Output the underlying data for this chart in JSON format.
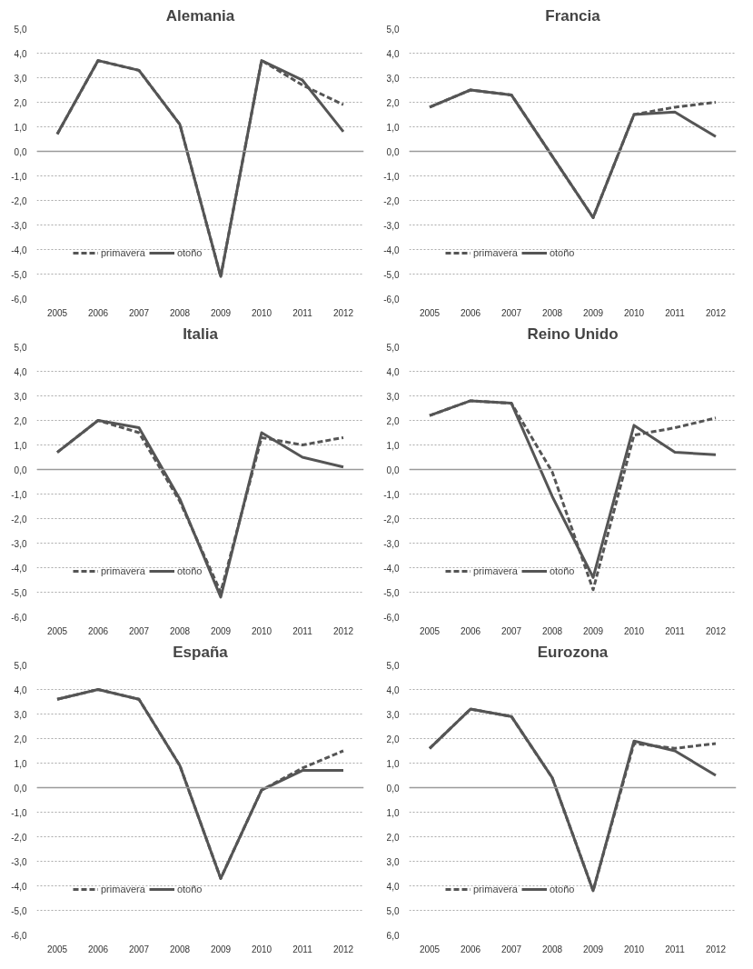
{
  "chart_data": [
    {
      "type": "line",
      "title": "Alemania",
      "categories": [
        "2005",
        "2006",
        "2007",
        "2008",
        "2009",
        "2010",
        "2011",
        "2012"
      ],
      "series": [
        {
          "name": "primavera",
          "color": "#555555",
          "line_style": "dashed",
          "values": [
            0.7,
            3.7,
            3.3,
            1.1,
            -5.1,
            3.7,
            2.7,
            1.9
          ]
        },
        {
          "name": "otoño",
          "color": "#555555",
          "line_style": "solid",
          "values": [
            0.7,
            3.7,
            3.3,
            1.1,
            -5.1,
            3.7,
            2.9,
            0.8
          ]
        }
      ],
      "ylim": [
        -6,
        5
      ],
      "yticks": [
        {
          "value": -6,
          "label": "-6,0"
        },
        {
          "value": -5,
          "label": "-5,0"
        },
        {
          "value": -4,
          "label": "-4,0"
        },
        {
          "value": -3,
          "label": "-3,0"
        },
        {
          "value": -2,
          "label": "-2,0"
        },
        {
          "value": -1,
          "label": "-1,0"
        },
        {
          "value": 0,
          "label": "0,0"
        },
        {
          "value": 1,
          "label": "1,0"
        },
        {
          "value": 2,
          "label": "2,0"
        },
        {
          "value": 3,
          "label": "3,0"
        },
        {
          "value": 4,
          "label": "4,0"
        },
        {
          "value": 5,
          "label": "5,0"
        }
      ],
      "ref_lines": [
        {
          "axis": "y",
          "value": 0,
          "color": "#9a9a9a"
        }
      ],
      "grid": "y",
      "legend": "bottom left",
      "marker": "none"
    },
    {
      "type": "line",
      "title": "Francia",
      "categories": [
        "2005",
        "2006",
        "2007",
        "2008",
        "2009",
        "2010",
        "2011",
        "2012"
      ],
      "series": [
        {
          "name": "primavera",
          "color": "#555555",
          "line_style": "dashed",
          "values": [
            1.8,
            2.5,
            2.3,
            -0.2,
            -2.7,
            1.5,
            1.8,
            2.0
          ]
        },
        {
          "name": "otoño",
          "color": "#555555",
          "line_style": "solid",
          "values": [
            1.8,
            2.5,
            2.3,
            -0.2,
            -2.7,
            1.5,
            1.6,
            0.6
          ]
        }
      ],
      "ylim": [
        -6,
        5
      ],
      "yticks": [
        {
          "value": -6,
          "label": "-6,0"
        },
        {
          "value": -5,
          "label": "-5,0"
        },
        {
          "value": -4,
          "label": "-4,0"
        },
        {
          "value": -3,
          "label": "-3,0"
        },
        {
          "value": -2,
          "label": "-2,0"
        },
        {
          "value": -1,
          "label": "-1,0"
        },
        {
          "value": 0,
          "label": "0,0"
        },
        {
          "value": 1,
          "label": "1,0"
        },
        {
          "value": 2,
          "label": "2,0"
        },
        {
          "value": 3,
          "label": "3,0"
        },
        {
          "value": 4,
          "label": "4,0"
        },
        {
          "value": 5,
          "label": "5,0"
        }
      ],
      "ref_lines": [
        {
          "axis": "y",
          "value": 0,
          "color": "#9a9a9a"
        }
      ],
      "grid": "y",
      "legend": "bottom left",
      "marker": "none"
    },
    {
      "type": "line",
      "title": "Italia",
      "categories": [
        "2005",
        "2006",
        "2007",
        "2008",
        "2009",
        "2010",
        "2011",
        "2012"
      ],
      "series": [
        {
          "name": "primavera",
          "color": "#555555",
          "line_style": "dashed",
          "values": [
            0.7,
            2.0,
            1.5,
            -1.3,
            -5.0,
            1.3,
            1.0,
            1.3
          ]
        },
        {
          "name": "otoño",
          "color": "#555555",
          "line_style": "solid",
          "values": [
            0.7,
            2.0,
            1.7,
            -1.2,
            -5.2,
            1.5,
            0.5,
            0.1
          ]
        }
      ],
      "ylim": [
        -6,
        5
      ],
      "yticks": [
        {
          "value": -6,
          "label": "-6,0"
        },
        {
          "value": -5,
          "label": "-5,0"
        },
        {
          "value": -4,
          "label": "-4,0"
        },
        {
          "value": -3,
          "label": "-3,0"
        },
        {
          "value": -2,
          "label": "-2,0"
        },
        {
          "value": -1,
          "label": "-1,0"
        },
        {
          "value": 0,
          "label": "0,0"
        },
        {
          "value": 1,
          "label": "1,0"
        },
        {
          "value": 2,
          "label": "2,0"
        },
        {
          "value": 3,
          "label": "3,0"
        },
        {
          "value": 4,
          "label": "4,0"
        },
        {
          "value": 5,
          "label": "5,0"
        }
      ],
      "ref_lines": [
        {
          "axis": "y",
          "value": 0,
          "color": "#9a9a9a"
        }
      ],
      "grid": "y",
      "legend": "bottom left",
      "marker": "none"
    },
    {
      "type": "line",
      "title": "Reino Unido",
      "categories": [
        "2005",
        "2006",
        "2007",
        "2008",
        "2009",
        "2010",
        "2011",
        "2012"
      ],
      "series": [
        {
          "name": "primavera",
          "color": "#555555",
          "line_style": "dashed",
          "values": [
            2.2,
            2.8,
            2.7,
            -0.1,
            -4.9,
            1.4,
            1.7,
            2.1
          ]
        },
        {
          "name": "otoño",
          "color": "#555555",
          "line_style": "solid",
          "values": [
            2.2,
            2.8,
            2.7,
            -1.1,
            -4.4,
            1.8,
            0.7,
            0.6
          ]
        }
      ],
      "ylim": [
        -6,
        5
      ],
      "yticks": [
        {
          "value": -6,
          "label": "-6,0"
        },
        {
          "value": -5,
          "label": "-5,0"
        },
        {
          "value": -4,
          "label": "-4,0"
        },
        {
          "value": -3,
          "label": "-3,0"
        },
        {
          "value": -2,
          "label": "-2,0"
        },
        {
          "value": -1,
          "label": "-1,0"
        },
        {
          "value": 0,
          "label": "0,0"
        },
        {
          "value": 1,
          "label": "1,0"
        },
        {
          "value": 2,
          "label": "2,0"
        },
        {
          "value": 3,
          "label": "3,0"
        },
        {
          "value": 4,
          "label": "4,0"
        },
        {
          "value": 5,
          "label": "5,0"
        }
      ],
      "ref_lines": [
        {
          "axis": "y",
          "value": 0,
          "color": "#9a9a9a"
        }
      ],
      "grid": "y",
      "legend": "bottom left",
      "marker": "none"
    },
    {
      "type": "line",
      "title": "España",
      "categories": [
        "2005",
        "2006",
        "2007",
        "2008",
        "2009",
        "2010",
        "2011",
        "2012"
      ],
      "series": [
        {
          "name": "primavera",
          "color": "#555555",
          "line_style": "dashed",
          "values": [
            3.6,
            4.0,
            3.6,
            0.9,
            -3.7,
            -0.1,
            0.8,
            1.5
          ]
        },
        {
          "name": "otoño",
          "color": "#555555",
          "line_style": "solid",
          "values": [
            3.6,
            4.0,
            3.6,
            0.9,
            -3.7,
            -0.1,
            0.7,
            0.7
          ]
        }
      ],
      "ylim": [
        -6,
        5
      ],
      "yticks": [
        {
          "value": -6,
          "label": "-6,0"
        },
        {
          "value": -5,
          "label": "-5,0"
        },
        {
          "value": -4,
          "label": "-4,0"
        },
        {
          "value": -3,
          "label": "-3,0"
        },
        {
          "value": -2,
          "label": "-2,0"
        },
        {
          "value": -1,
          "label": "-1,0"
        },
        {
          "value": 0,
          "label": "0,0"
        },
        {
          "value": 1,
          "label": "1,0"
        },
        {
          "value": 2,
          "label": "2,0"
        },
        {
          "value": 3,
          "label": "3,0"
        },
        {
          "value": 4,
          "label": "4,0"
        },
        {
          "value": 5,
          "label": "5,0"
        }
      ],
      "ref_lines": [
        {
          "axis": "y",
          "value": 0,
          "color": "#9a9a9a"
        }
      ],
      "grid": "y",
      "legend": "bottom left",
      "marker": "none"
    },
    {
      "type": "line",
      "title": "Eurozona",
      "categories": [
        "2005",
        "2006",
        "2007",
        "2008",
        "2009",
        "2010",
        "2011",
        "2012"
      ],
      "series": [
        {
          "name": "primavera",
          "color": "#555555",
          "line_style": "dashed",
          "values": [
            1.6,
            3.2,
            2.9,
            0.4,
            -4.2,
            1.8,
            1.6,
            1.8
          ]
        },
        {
          "name": "otoño",
          "color": "#555555",
          "line_style": "solid",
          "values": [
            1.6,
            3.2,
            2.9,
            0.4,
            -4.2,
            1.9,
            1.5,
            0.5
          ]
        }
      ],
      "ylim": [
        -6,
        5
      ],
      "yticks": [
        {
          "value": -6,
          "label": "6,0"
        },
        {
          "value": -5,
          "label": "5,0"
        },
        {
          "value": -4,
          "label": "4,0"
        },
        {
          "value": -3,
          "label": "3,0"
        },
        {
          "value": -2,
          "label": "2,0"
        },
        {
          "value": -1,
          "label": "1,0"
        },
        {
          "value": 0,
          "label": "0,0"
        },
        {
          "value": 1,
          "label": "1,0"
        },
        {
          "value": 2,
          "label": "2,0"
        },
        {
          "value": 3,
          "label": "3,0"
        },
        {
          "value": 4,
          "label": "4,0"
        },
        {
          "value": 5,
          "label": "5,0"
        }
      ],
      "ref_lines": [
        {
          "axis": "y",
          "value": 0,
          "color": "#9a9a9a"
        }
      ],
      "grid": "y",
      "legend": "bottom left",
      "marker": "none"
    }
  ]
}
